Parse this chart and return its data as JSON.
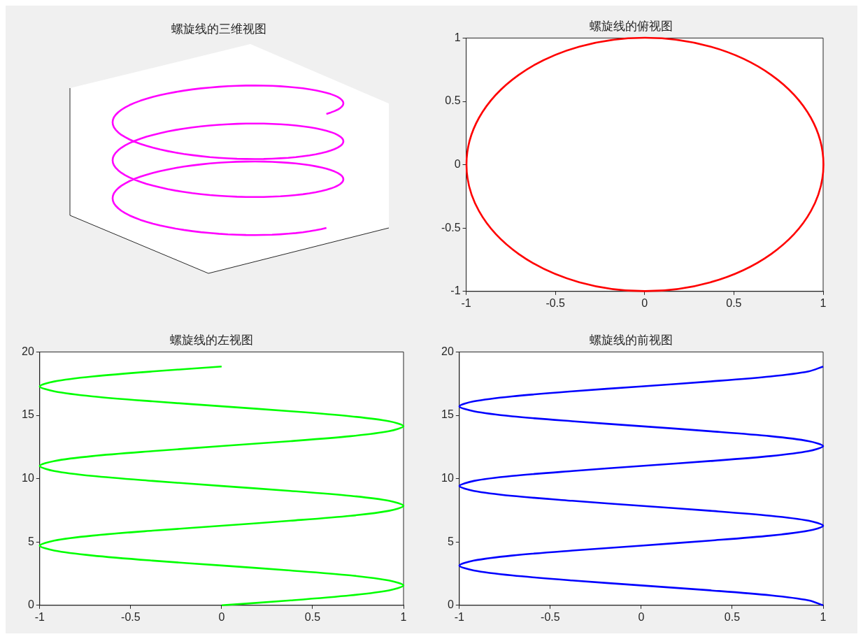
{
  "chart_data": [
    {
      "type": "other",
      "title": "螺旋线的三维视图"
    },
    {
      "type": "line",
      "title": "螺旋线的俯视图",
      "grid": false,
      "legend": false,
      "xlim": [
        -1,
        1
      ],
      "xticks": [
        -1,
        -0.5,
        0,
        0.5,
        1
      ],
      "ylim": [
        -1,
        1
      ],
      "yticks": [
        -1,
        -0.5,
        0,
        0.5,
        1
      ]
    },
    {
      "type": "line",
      "title": "螺旋线的左视图",
      "marker": "none",
      "grid": false,
      "legend": false,
      "xlim": [
        -1,
        1
      ],
      "xticks": [
        -1,
        -0.5,
        0,
        0.5,
        1
      ],
      "ylim": [
        0,
        20
      ],
      "yticks": [
        0,
        5,
        10,
        15,
        20
      ],
      "series": [
        {
          "color": "#00ff00",
          "x": [
            0,
            0.38,
            0.71,
            0.92,
            1,
            0.92,
            0.71,
            0.38,
            0,
            -0.38,
            -0.71,
            -0.92,
            -1,
            -0.92,
            -0.71,
            -0.38,
            0,
            0.38,
            0.71,
            0.92,
            1,
            0.92,
            0.71,
            0.38,
            0,
            -0.38,
            -0.71,
            -0.92,
            -1,
            -0.92,
            -0.71,
            -0.38,
            0,
            0.38,
            0.71,
            0.92,
            1,
            0.92,
            0.71,
            0.38,
            0,
            -0.38,
            -0.71,
            -0.92,
            -1,
            -0.92,
            -0.71,
            -0.38,
            0
          ],
          "values": [
            0,
            0.39,
            0.79,
            1.18,
            1.57,
            1.96,
            2.36,
            2.75,
            3.14,
            3.53,
            3.93,
            4.32,
            4.71,
            5.11,
            5.5,
            5.89,
            6.28,
            6.68,
            7.07,
            7.46,
            7.85,
            8.25,
            8.64,
            9.03,
            9.42,
            9.82,
            10.21,
            10.6,
            11,
            11.39,
            11.78,
            12.17,
            12.57,
            12.96,
            13.35,
            13.74,
            14.14,
            14.53,
            14.92,
            15.32,
            15.71,
            16.1,
            16.49,
            16.89,
            17.28,
            17.67,
            18.06,
            18.46,
            18.85
          ]
        }
      ]
    },
    {
      "type": "line",
      "title": "螺旋线的前视图",
      "marker": "none",
      "grid": false,
      "legend": false,
      "xlim": [
        -1,
        1
      ],
      "xticks": [
        -1,
        -0.5,
        0,
        0.5,
        1
      ],
      "ylim": [
        0,
        20
      ],
      "yticks": [
        0,
        5,
        10,
        15,
        20
      ],
      "series": [
        {
          "color": "#0000ff",
          "x": [
            1,
            0.92,
            0.71,
            0.38,
            0,
            -0.38,
            -0.71,
            -0.92,
            -1,
            -0.92,
            -0.71,
            -0.38,
            0,
            0.38,
            0.71,
            0.92,
            1,
            0.92,
            0.71,
            0.38,
            0,
            -0.38,
            -0.71,
            -0.92,
            -1,
            -0.92,
            -0.71,
            -0.38,
            0,
            0.38,
            0.71,
            0.92,
            1,
            0.92,
            0.71,
            0.38,
            0,
            -0.38,
            -0.71,
            -0.92,
            -1,
            -0.92,
            -0.71,
            -0.38,
            0,
            0.38,
            0.71,
            0.92,
            1
          ],
          "values": [
            0,
            0.39,
            0.79,
            1.18,
            1.57,
            1.96,
            2.36,
            2.75,
            3.14,
            3.53,
            3.93,
            4.32,
            4.71,
            5.11,
            5.5,
            5.89,
            6.28,
            6.68,
            7.07,
            7.46,
            7.85,
            8.25,
            8.64,
            9.03,
            9.42,
            9.82,
            10.21,
            10.6,
            11,
            11.39,
            11.78,
            12.17,
            12.57,
            12.96,
            13.35,
            13.74,
            14.14,
            14.53,
            14.92,
            15.32,
            15.71,
            16.1,
            16.49,
            16.89,
            17.28,
            17.67,
            18.06,
            18.46,
            18.85
          ]
        }
      ]
    }
  ]
}
